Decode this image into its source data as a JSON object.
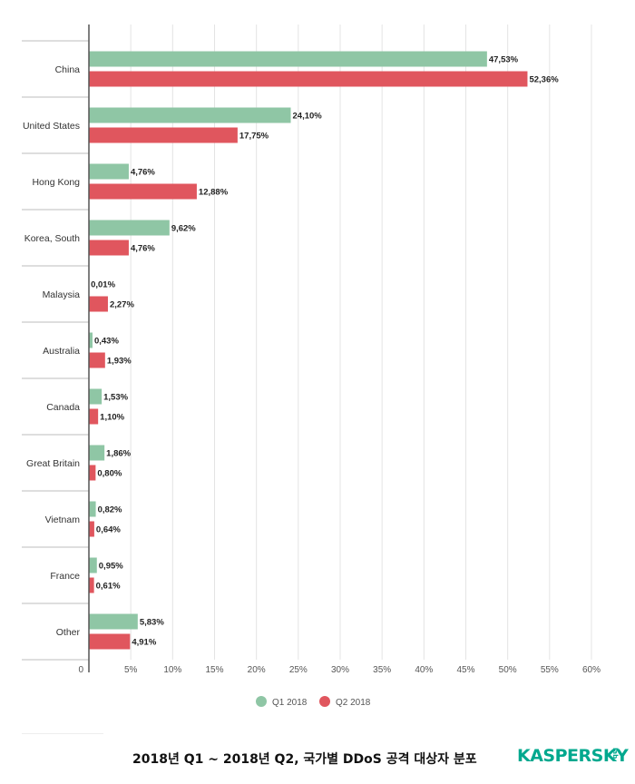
{
  "chart_data": {
    "type": "bar",
    "orientation": "horizontal",
    "categories": [
      "China",
      "United States",
      "Hong Kong",
      "Korea, South",
      "Malaysia",
      "Australia",
      "Canada",
      "Great Britain",
      "Vietnam",
      "France",
      "Other"
    ],
    "series": [
      {
        "name": "Q1 2018",
        "color": "#8fc6a5",
        "values": [
          47.53,
          24.1,
          4.76,
          9.62,
          0.01,
          0.43,
          1.53,
          1.86,
          0.82,
          0.95,
          5.83
        ],
        "labels": [
          "47,53%",
          "24,10%",
          "4,76%",
          "9,62%",
          "0,01%",
          "0,43%",
          "1,53%",
          "1,86%",
          "0,82%",
          "0,95%",
          "5,83%"
        ]
      },
      {
        "name": "Q2 2018",
        "color": "#e0565e",
        "values": [
          52.36,
          17.75,
          12.88,
          4.76,
          2.27,
          1.93,
          1.1,
          0.8,
          0.64,
          0.61,
          4.91
        ],
        "labels": [
          "52,36%",
          "17,75%",
          "12,88%",
          "4,76%",
          "2,27%",
          "1,93%",
          "1,10%",
          "0,80%",
          "0,64%",
          "0,61%",
          "4,91%"
        ]
      }
    ],
    "xlim": [
      0,
      60
    ],
    "ticks": [
      0,
      5,
      10,
      15,
      20,
      25,
      30,
      35,
      40,
      45,
      50,
      55,
      60
    ],
    "tick_labels": [
      "0",
      "5%",
      "10%",
      "15%",
      "20%",
      "25%",
      "30%",
      "35%",
      "40%",
      "45%",
      "50%",
      "55%",
      "60%"
    ],
    "grid": true,
    "legend_position": "bottom"
  },
  "footer": {
    "caption": "2018년 Q1 ~ 2018년 Q2, 국가별 DDoS 공격 대상자 분포",
    "logo_text": "KASPERSKY",
    "logo_sub": "lab"
  }
}
